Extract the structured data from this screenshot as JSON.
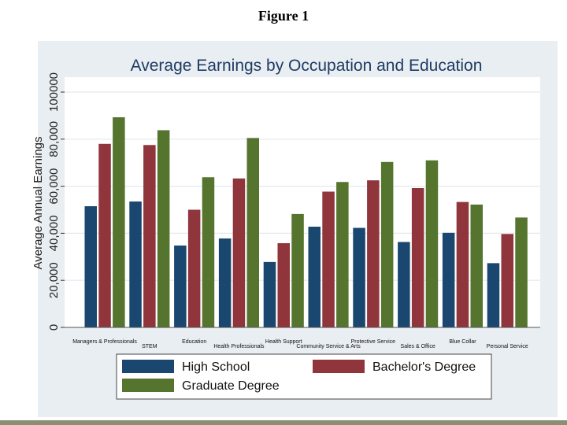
{
  "figure_label": "Figure 1",
  "chart_data": {
    "type": "bar",
    "title": "Average Earnings by Occupation and Education",
    "xlabel": "",
    "ylabel": "Average Annual Earnings",
    "ylim": [
      0,
      100000
    ],
    "yticks": [
      0,
      20000,
      40000,
      60000,
      80000,
      100000
    ],
    "ytick_labels": [
      "0",
      "20,000",
      "40,000",
      "60,000",
      "80,000",
      "100000"
    ],
    "grid": true,
    "legend_position": "bottom",
    "categories": [
      "Managers & Professionals",
      "STEM",
      "Education",
      "Health Professionals",
      "Health Support",
      "Community Service & Arts",
      "Protective Service",
      "Sales & Office",
      "Blue Collar",
      "Personal Service"
    ],
    "series": [
      {
        "name": "High School",
        "color": "#1a476f",
        "values": [
          51500,
          53500,
          34800,
          37800,
          27800,
          42800,
          42300,
          36300,
          40200,
          27300
        ]
      },
      {
        "name": "Bachelor's Degree",
        "color": "#90353b",
        "values": [
          78000,
          77500,
          50000,
          63300,
          35800,
          57700,
          62500,
          59200,
          53300,
          39700
        ]
      },
      {
        "name": "Graduate Degree",
        "color": "#55752f",
        "values": [
          89300,
          83800,
          63800,
          80500,
          48200,
          61800,
          70300,
          71000,
          52200,
          46700
        ]
      }
    ]
  }
}
